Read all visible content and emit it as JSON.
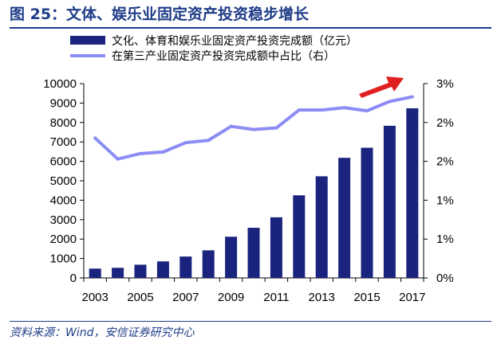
{
  "figure": {
    "title": "图 25：文体、娱乐业固定资产投资稳步增长",
    "source": "资料来源：Wind，安信证券研究中心"
  },
  "colors": {
    "bar": "#1a237e",
    "line": "#8c8cf5",
    "title": "#1f3c88",
    "arrow": "#e02020"
  },
  "chart_data": {
    "type": "bar",
    "categories": [
      "2003",
      "2004",
      "2005",
      "2006",
      "2007",
      "2008",
      "2009",
      "2010",
      "2011",
      "2012",
      "2013",
      "2014",
      "2015",
      "2016",
      "2017"
    ],
    "x_tick_labels": [
      "2003",
      "2005",
      "2007",
      "2009",
      "2011",
      "2013",
      "2015",
      "2017"
    ],
    "series": [
      {
        "name": "文化、体育和娱乐业固定资产投资完成额（亿元）",
        "type": "bar",
        "axis": "left",
        "values": [
          480,
          520,
          680,
          850,
          1100,
          1420,
          2120,
          2580,
          3120,
          4250,
          5230,
          6180,
          6700,
          7830,
          8730
        ]
      },
      {
        "name": "在第三产业固定资产投资完成额中占比（右）",
        "type": "line",
        "axis": "right",
        "values": [
          1.8,
          1.53,
          1.6,
          1.62,
          1.74,
          1.77,
          1.95,
          1.91,
          1.93,
          2.16,
          2.16,
          2.19,
          2.15,
          2.27,
          2.33
        ]
      }
    ],
    "y_left": {
      "min": 0,
      "max": 10000,
      "ticks": [
        0,
        1000,
        2000,
        3000,
        4000,
        5000,
        6000,
        7000,
        8000,
        9000,
        10000
      ]
    },
    "y_right": {
      "min": 0,
      "max": 2.5,
      "tick_values": [
        0,
        0.5,
        1,
        1.5,
        2,
        2.5
      ],
      "tick_labels": [
        "0%",
        "1%",
        "1%",
        "2%",
        "2%",
        "3%"
      ]
    },
    "legend": {
      "position": "top-left"
    },
    "grid": false
  }
}
